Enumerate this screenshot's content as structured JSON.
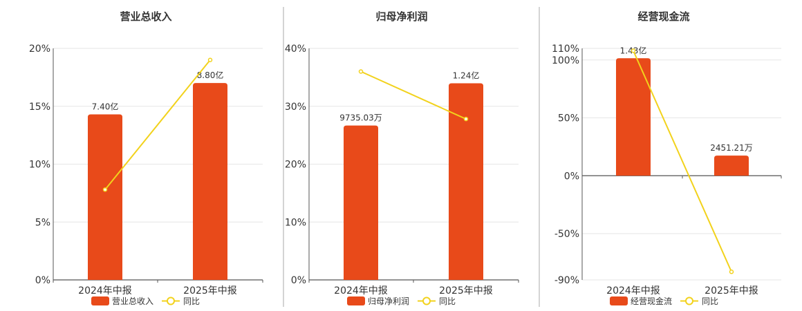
{
  "colors": {
    "bar": "#E84A1A",
    "line": "#F2D21C",
    "grid": "#e6e6e6",
    "axis": "#555555",
    "divider": "#aaaaaa"
  },
  "chart_data": [
    {
      "type": "bar",
      "title": "营业总收入",
      "categories": [
        "2024年中报",
        "2025年中报"
      ],
      "series": [
        {
          "name": "营业总收入",
          "type": "bar",
          "values": [
            7.4,
            8.8
          ],
          "labels": [
            "7.40亿",
            "8.80亿"
          ]
        },
        {
          "name": "同比",
          "type": "line",
          "values": [
            7.8,
            19.0
          ]
        }
      ],
      "yticks": [
        "0%",
        "5%",
        "10%",
        "15%",
        "20%"
      ],
      "ylim": [
        0,
        20
      ],
      "bar_axis_max": 10.35,
      "grid": true,
      "legend": "bottom"
    },
    {
      "type": "bar",
      "title": "归母净利润",
      "categories": [
        "2024年中报",
        "2025年中报"
      ],
      "series": [
        {
          "name": "归母净利润",
          "type": "bar",
          "values": [
            0.9735,
            1.24
          ],
          "labels": [
            "9735.03万",
            "1.24亿"
          ]
        },
        {
          "name": "同比",
          "type": "line",
          "values": [
            36.0,
            27.8
          ]
        }
      ],
      "yticks": [
        "0%",
        "10%",
        "20%",
        "30%",
        "40%"
      ],
      "ylim": [
        0,
        40
      ],
      "bar_axis_max": 1.46,
      "grid": true,
      "legend": "bottom"
    },
    {
      "type": "bar",
      "title": "经营现金流",
      "categories": [
        "2024年中报",
        "2025年中报"
      ],
      "series": [
        {
          "name": "经营现金流",
          "type": "bar",
          "values": [
            1.43,
            0.2451
          ],
          "labels": [
            "1.43亿",
            "2451.21万"
          ]
        },
        {
          "name": "同比",
          "type": "line",
          "values": [
            108.0,
            -83.0
          ]
        }
      ],
      "yticks": [
        "-90%",
        "-50%",
        "0%",
        "50%",
        "100%",
        "110%"
      ],
      "ytick_values": [
        -90,
        -50,
        0,
        50,
        100,
        110
      ],
      "ylim": [
        -90,
        110
      ],
      "bar_axis_max": 1.55,
      "grid": true,
      "legend": "bottom"
    }
  ]
}
